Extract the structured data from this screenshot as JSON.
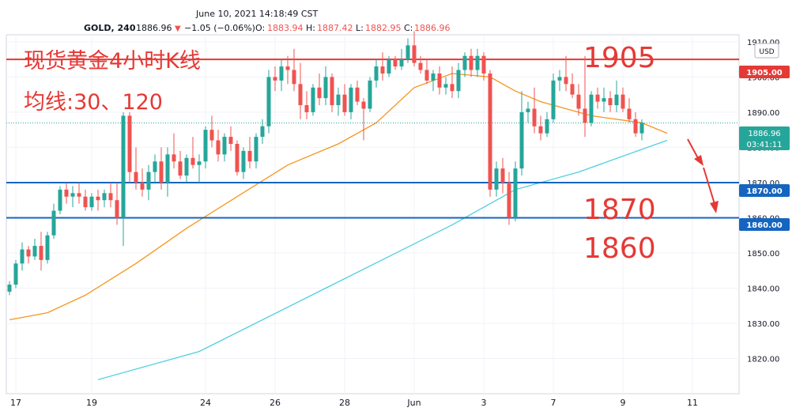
{
  "header": {
    "datetime": "June 10, 2021 14:18:49 CST",
    "symbol": "GOLD, 240",
    "price": "1886.96",
    "arrow": "▼",
    "change": "−1.05 (−0.06%)",
    "o_label": "O:",
    "o_value": "1883.94",
    "h_label": "H:",
    "h_value": "1887.42",
    "l_label": "L:",
    "l_value": "1882.95",
    "c_label": "C:",
    "c_value": "1886.96"
  },
  "annotations": {
    "title_line1": "现货黄金4小时K线",
    "title_line2": "均线:30、120",
    "level_1905": "1905",
    "level_1870": "1870",
    "level_1860": "1860"
  },
  "currency_button": "USD",
  "price_badges": {
    "last_price": "1886.96",
    "countdown": "03:41:11",
    "h1905": "1905.00",
    "h1870": "1870.00",
    "h1860": "1860.00"
  },
  "colors": {
    "up": "#26a69a",
    "down": "#ef5350",
    "ma30": "#f7941d",
    "ma120": "#4dd0e1",
    "resistance": "#e53935",
    "support": "#1565c0",
    "annotation_text": "#e53935"
  },
  "chart_data": {
    "type": "candlestick",
    "title": "现货黄金4小时K线",
    "ylim": [
      1810,
      1912
    ],
    "y_ticks": [
      1820,
      1830,
      1840,
      1850,
      1860,
      1870,
      1880,
      1890,
      1900,
      1910
    ],
    "y_tick_labels": [
      "1820.00",
      "1830.00",
      "1840.00",
      "1850.00",
      "1860.00",
      "1870.00",
      "1880.00",
      "1890.00",
      "1900.00",
      "1910.00"
    ],
    "x_labels": [
      {
        "label": "17",
        "bar": 1
      },
      {
        "label": "19",
        "bar": 13
      },
      {
        "label": "24",
        "bar": 31
      },
      {
        "label": "26",
        "bar": 42
      },
      {
        "label": "28",
        "bar": 53
      },
      {
        "label": "Jun",
        "bar": 64
      },
      {
        "label": "3",
        "bar": 75
      },
      {
        "label": "7",
        "bar": 86
      },
      {
        "label": "9",
        "bar": 97
      },
      {
        "label": "11",
        "bar": 108
      }
    ],
    "horizontal_levels": [
      {
        "value": 1905,
        "color": "red"
      },
      {
        "value": 1870,
        "color": "blue"
      },
      {
        "value": 1860,
        "color": "blue"
      }
    ],
    "last_price": 1886.96,
    "ohlc": [
      [
        1839,
        1842,
        1838,
        1841
      ],
      [
        1841,
        1848,
        1840,
        1847
      ],
      [
        1847,
        1853,
        1845,
        1851
      ],
      [
        1851,
        1852,
        1847,
        1849
      ],
      [
        1849,
        1854,
        1848,
        1852
      ],
      [
        1852,
        1856,
        1845,
        1848
      ],
      [
        1848,
        1856,
        1847,
        1855
      ],
      [
        1855,
        1864,
        1854,
        1862
      ],
      [
        1862,
        1869,
        1861,
        1868
      ],
      [
        1868,
        1870,
        1864,
        1866
      ],
      [
        1866,
        1869,
        1863,
        1867
      ],
      [
        1867,
        1870,
        1864,
        1866
      ],
      [
        1866,
        1868,
        1862,
        1863
      ],
      [
        1863,
        1867,
        1862,
        1866
      ],
      [
        1866,
        1868,
        1862,
        1865
      ],
      [
        1865,
        1868,
        1863,
        1867
      ],
      [
        1867,
        1870,
        1863,
        1865
      ],
      [
        1865,
        1870,
        1858,
        1860
      ],
      [
        1860,
        1890,
        1852,
        1889
      ],
      [
        1889,
        1890,
        1870,
        1873
      ],
      [
        1873,
        1880,
        1868,
        1870
      ],
      [
        1870,
        1874,
        1866,
        1868
      ],
      [
        1868,
        1875,
        1865,
        1873
      ],
      [
        1873,
        1878,
        1870,
        1876
      ],
      [
        1876,
        1880,
        1868,
        1870
      ],
      [
        1870,
        1880,
        1866,
        1878
      ],
      [
        1878,
        1884,
        1874,
        1876
      ],
      [
        1876,
        1879,
        1871,
        1872
      ],
      [
        1872,
        1878,
        1870,
        1877
      ],
      [
        1877,
        1883,
        1874,
        1875
      ],
      [
        1875,
        1878,
        1870,
        1876
      ],
      [
        1876,
        1886,
        1874,
        1885
      ],
      [
        1885,
        1889,
        1880,
        1882
      ],
      [
        1882,
        1885,
        1876,
        1878
      ],
      [
        1878,
        1884,
        1876,
        1883
      ],
      [
        1883,
        1886,
        1879,
        1881
      ],
      [
        1881,
        1882,
        1872,
        1873
      ],
      [
        1873,
        1880,
        1871,
        1879
      ],
      [
        1879,
        1883,
        1874,
        1876
      ],
      [
        1876,
        1884,
        1874,
        1883
      ],
      [
        1883,
        1888,
        1881,
        1886
      ],
      [
        1886,
        1902,
        1884,
        1900
      ],
      [
        1900,
        1903,
        1896,
        1899
      ],
      [
        1899,
        1905,
        1896,
        1903
      ],
      [
        1903,
        1906,
        1898,
        1902
      ],
      [
        1902,
        1908,
        1896,
        1898
      ],
      [
        1898,
        1904,
        1888,
        1892
      ],
      [
        1892,
        1896,
        1888,
        1890
      ],
      [
        1890,
        1898,
        1889,
        1897
      ],
      [
        1897,
        1901,
        1892,
        1894
      ],
      [
        1894,
        1903,
        1892,
        1900
      ],
      [
        1900,
        1901,
        1890,
        1892
      ],
      [
        1892,
        1897,
        1889,
        1895
      ],
      [
        1895,
        1898,
        1889,
        1890
      ],
      [
        1890,
        1898,
        1888,
        1897
      ],
      [
        1897,
        1899,
        1892,
        1893
      ],
      [
        1893,
        1894,
        1882,
        1891
      ],
      [
        1891,
        1900,
        1890,
        1899
      ],
      [
        1899,
        1905,
        1897,
        1903
      ],
      [
        1903,
        1907,
        1899,
        1901
      ],
      [
        1901,
        1906,
        1900,
        1905
      ],
      [
        1905,
        1906,
        1902,
        1903
      ],
      [
        1903,
        1908,
        1902,
        1905
      ],
      [
        1905,
        1911,
        1904,
        1909
      ],
      [
        1909,
        1913,
        1903,
        1904
      ],
      [
        1904,
        1906,
        1901,
        1902
      ],
      [
        1902,
        1905,
        1898,
        1899
      ],
      [
        1899,
        1902,
        1896,
        1901
      ],
      [
        1901,
        1903,
        1895,
        1897
      ],
      [
        1897,
        1900,
        1895,
        1898
      ],
      [
        1898,
        1903,
        1894,
        1896
      ],
      [
        1896,
        1904,
        1894,
        1902
      ],
      [
        1902,
        1907,
        1900,
        1906
      ],
      [
        1906,
        1908,
        1900,
        1902
      ],
      [
        1902,
        1908,
        1900,
        1906
      ],
      [
        1906,
        1907,
        1899,
        1901
      ],
      [
        1901,
        1902,
        1866,
        1868
      ],
      [
        1868,
        1876,
        1866,
        1874
      ],
      [
        1874,
        1877,
        1867,
        1870
      ],
      [
        1870,
        1873,
        1858,
        1860
      ],
      [
        1860,
        1876,
        1859,
        1874
      ],
      [
        1874,
        1896,
        1872,
        1890
      ],
      [
        1890,
        1893,
        1887,
        1891
      ],
      [
        1891,
        1897,
        1884,
        1886
      ],
      [
        1886,
        1889,
        1882,
        1884
      ],
      [
        1884,
        1890,
        1883,
        1888
      ],
      [
        1888,
        1901,
        1887,
        1899
      ],
      [
        1899,
        1902,
        1896,
        1900
      ],
      [
        1900,
        1906,
        1896,
        1898
      ],
      [
        1898,
        1901,
        1894,
        1895
      ],
      [
        1895,
        1898,
        1889,
        1891
      ],
      [
        1891,
        1906,
        1883,
        1887
      ],
      [
        1887,
        1896,
        1886,
        1895
      ],
      [
        1895,
        1897,
        1891,
        1893
      ],
      [
        1893,
        1897,
        1890,
        1894
      ],
      [
        1894,
        1896,
        1890,
        1892
      ],
      [
        1892,
        1899,
        1890,
        1895
      ],
      [
        1895,
        1897,
        1890,
        1891
      ],
      [
        1891,
        1894,
        1887,
        1888
      ],
      [
        1888,
        1890,
        1883,
        1884
      ],
      [
        1884,
        1888,
        1882,
        1887
      ]
    ],
    "ma30": [
      [
        0,
        1831
      ],
      [
        6,
        1833
      ],
      [
        12,
        1838
      ],
      [
        20,
        1847
      ],
      [
        28,
        1857
      ],
      [
        36,
        1866
      ],
      [
        44,
        1875
      ],
      [
        52,
        1881
      ],
      [
        58,
        1887
      ],
      [
        64,
        1897
      ],
      [
        70,
        1901
      ],
      [
        76,
        1900
      ],
      [
        80,
        1896
      ],
      [
        84,
        1893
      ],
      [
        92,
        1889
      ],
      [
        100,
        1887
      ],
      [
        104,
        1884
      ]
    ],
    "ma120": [
      [
        14,
        1814
      ],
      [
        30,
        1822
      ],
      [
        50,
        1840
      ],
      [
        70,
        1858
      ],
      [
        80,
        1868
      ],
      [
        90,
        1873
      ],
      [
        104,
        1882
      ]
    ]
  }
}
